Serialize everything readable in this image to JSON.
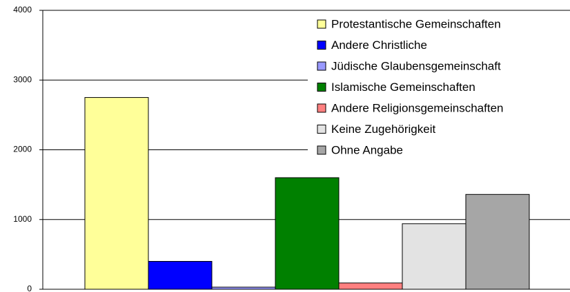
{
  "chart_data": {
    "type": "bar",
    "categories": [
      null
    ],
    "series": [
      {
        "name": "Protestantische Gemeinschaften",
        "color": "#ffff99",
        "values": [
          2750
        ]
      },
      {
        "name": "Andere Christliche",
        "color": "#0000ff",
        "values": [
          400
        ]
      },
      {
        "name": "Jüdische Glaubensgemeinschaft",
        "color": "#9999ff",
        "values": [
          30
        ]
      },
      {
        "name": "Islamische Gemeinschaften",
        "color": "#008000",
        "values": [
          1600
        ]
      },
      {
        "name": "Andere Religionsgemeinschaften",
        "color": "#ff8080",
        "values": [
          90
        ]
      },
      {
        "name": "Keine Zugehörigkeit",
        "color": "#e3e3e3",
        "values": [
          940
        ]
      },
      {
        "name": "Ohne Angabe",
        "color": "#a6a6a6",
        "values": [
          1360
        ]
      }
    ],
    "ylim": [
      0,
      4000
    ],
    "yticks": [
      0,
      1000,
      2000,
      3000,
      4000
    ],
    "grid": true,
    "legend": "top-right"
  }
}
